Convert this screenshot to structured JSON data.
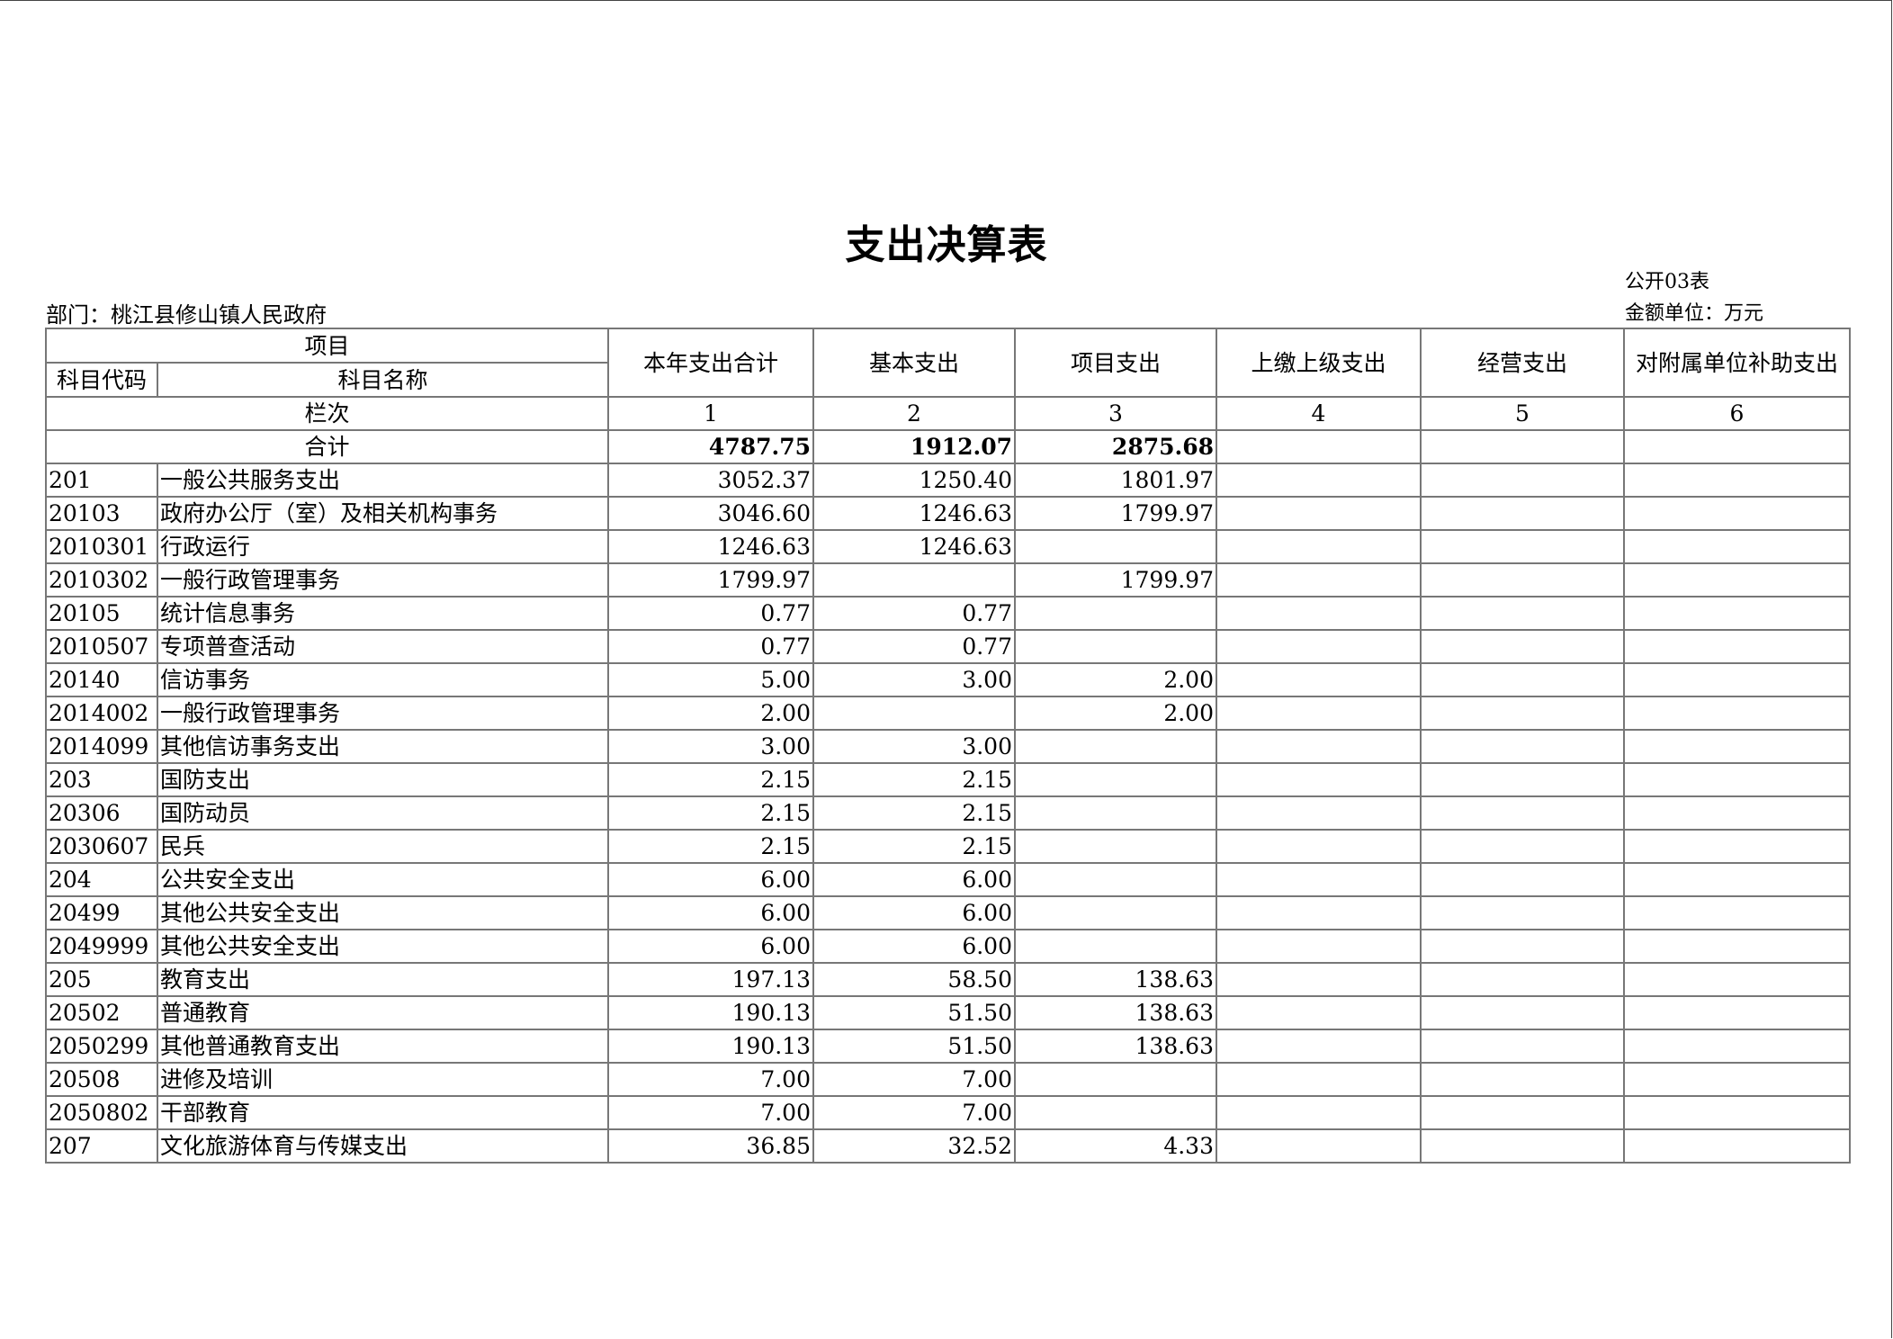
{
  "title": "支出决算表",
  "form_no": "公开03表",
  "department": "部门：桃江县修山镇人民政府",
  "unit": "金额单位：万元",
  "headers": {
    "item": "项目",
    "code": "科目代码",
    "name": "科目名称",
    "cols": [
      "本年支出合计",
      "基本支出",
      "项目支出",
      "上缴上级支出",
      "经营支出",
      "对附属单位补助支出"
    ],
    "col_index_label": "栏次",
    "col_numbers": [
      "1",
      "2",
      "3",
      "4",
      "5",
      "6"
    ]
  },
  "total": {
    "label": "合计",
    "values": [
      "4787.75",
      "1912.07",
      "2875.68",
      "",
      "",
      ""
    ]
  },
  "rows": [
    {
      "code": "201",
      "name": "一般公共服务支出",
      "values": [
        "3052.37",
        "1250.40",
        "1801.97",
        "",
        "",
        ""
      ]
    },
    {
      "code": "20103",
      "name": "政府办公厅（室）及相关机构事务",
      "values": [
        "3046.60",
        "1246.63",
        "1799.97",
        "",
        "",
        ""
      ]
    },
    {
      "code": "2010301",
      "name": "行政运行",
      "values": [
        "1246.63",
        "1246.63",
        "",
        "",
        "",
        ""
      ]
    },
    {
      "code": "2010302",
      "name": "一般行政管理事务",
      "values": [
        "1799.97",
        "",
        "1799.97",
        "",
        "",
        ""
      ]
    },
    {
      "code": "20105",
      "name": "统计信息事务",
      "values": [
        "0.77",
        "0.77",
        "",
        "",
        "",
        ""
      ]
    },
    {
      "code": "2010507",
      "name": "专项普查活动",
      "values": [
        "0.77",
        "0.77",
        "",
        "",
        "",
        ""
      ]
    },
    {
      "code": "20140",
      "name": "信访事务",
      "values": [
        "5.00",
        "3.00",
        "2.00",
        "",
        "",
        ""
      ]
    },
    {
      "code": "2014002",
      "name": "一般行政管理事务",
      "values": [
        "2.00",
        "",
        "2.00",
        "",
        "",
        ""
      ]
    },
    {
      "code": "2014099",
      "name": "其他信访事务支出",
      "values": [
        "3.00",
        "3.00",
        "",
        "",
        "",
        ""
      ]
    },
    {
      "code": "203",
      "name": "国防支出",
      "values": [
        "2.15",
        "2.15",
        "",
        "",
        "",
        ""
      ]
    },
    {
      "code": "20306",
      "name": "国防动员",
      "values": [
        "2.15",
        "2.15",
        "",
        "",
        "",
        ""
      ]
    },
    {
      "code": "2030607",
      "name": "民兵",
      "values": [
        "2.15",
        "2.15",
        "",
        "",
        "",
        ""
      ]
    },
    {
      "code": "204",
      "name": "公共安全支出",
      "values": [
        "6.00",
        "6.00",
        "",
        "",
        "",
        ""
      ]
    },
    {
      "code": "20499",
      "name": "其他公共安全支出",
      "values": [
        "6.00",
        "6.00",
        "",
        "",
        "",
        ""
      ]
    },
    {
      "code": "2049999",
      "name": "其他公共安全支出",
      "values": [
        "6.00",
        "6.00",
        "",
        "",
        "",
        ""
      ]
    },
    {
      "code": "205",
      "name": "教育支出",
      "values": [
        "197.13",
        "58.50",
        "138.63",
        "",
        "",
        ""
      ]
    },
    {
      "code": "20502",
      "name": "普通教育",
      "values": [
        "190.13",
        "51.50",
        "138.63",
        "",
        "",
        ""
      ]
    },
    {
      "code": "2050299",
      "name": "其他普通教育支出",
      "values": [
        "190.13",
        "51.50",
        "138.63",
        "",
        "",
        ""
      ]
    },
    {
      "code": "20508",
      "name": "进修及培训",
      "values": [
        "7.00",
        "7.00",
        "",
        "",
        "",
        ""
      ]
    },
    {
      "code": "2050802",
      "name": "干部教育",
      "values": [
        "7.00",
        "7.00",
        "",
        "",
        "",
        ""
      ]
    },
    {
      "code": "207",
      "name": "文化旅游体育与传媒支出",
      "values": [
        "36.85",
        "32.52",
        "4.33",
        "",
        "",
        ""
      ]
    }
  ]
}
